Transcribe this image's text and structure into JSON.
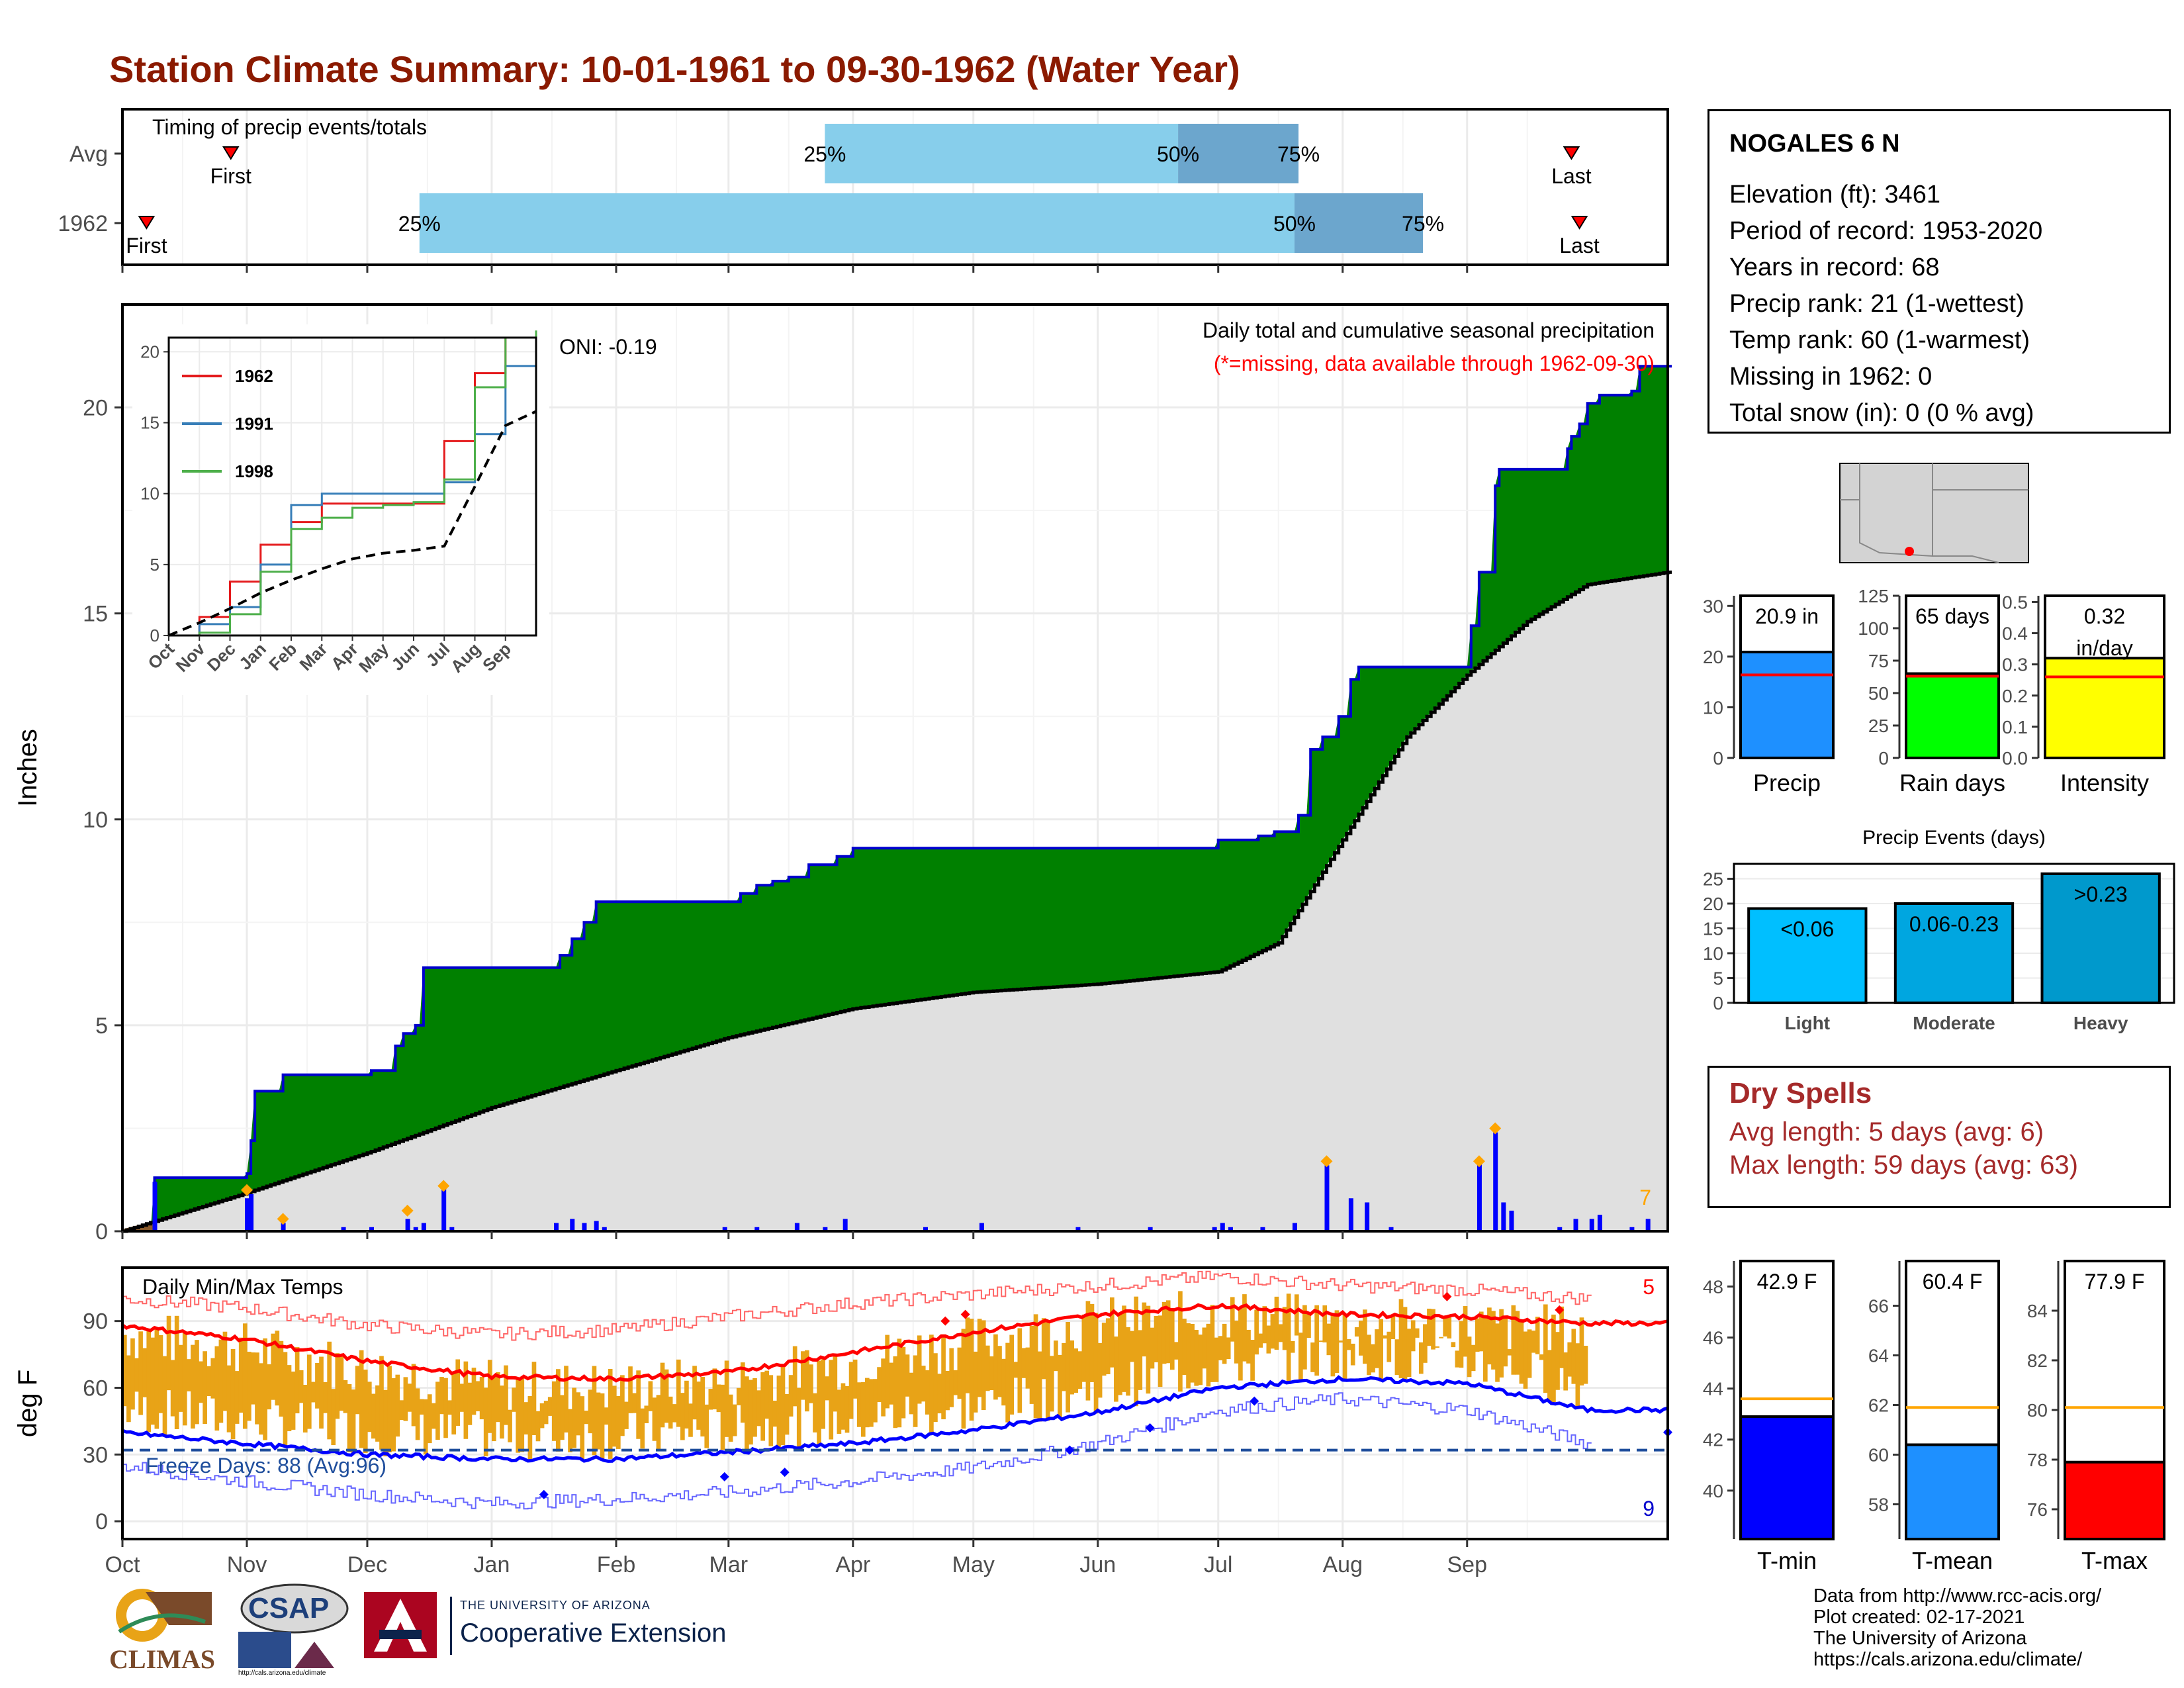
{
  "title": "Station Climate Summary: 10-01-1961 to 09-30-1962 (Water Year)",
  "station": {
    "name": "NOGALES 6 N",
    "rows": [
      "Elevation (ft): 3461",
      "Period of record: 1953-2020",
      "Years in record: 68",
      "Precip rank: 21 (1-wettest)",
      "Temp rank: 60 (1-warmest)",
      "Missing in 1962: 0",
      "Total snow (in): 0 (0 % avg)"
    ]
  },
  "dry_spells": {
    "title": "Dry Spells",
    "avg_length": "Avg length: 5 days (avg: 6)",
    "max_length": "Max length: 59 days (avg: 63)"
  },
  "footer": {
    "lines": [
      "Data from http://www.rcc-acis.org/",
      "Plot created: 02-17-2021",
      "The University of Arizona",
      "https://cals.arizona.edu/climate/"
    ]
  },
  "logos": {
    "climas": "CLIMAS",
    "csap": "CSAP",
    "csap_url": "http://cals.arizona.edu/climate",
    "ua_top": "THE UNIVERSITY OF ARIZONA",
    "ua_bottom": "Cooperative Extension"
  },
  "colors": {
    "title": "#8b1a00",
    "quartile_light": "#87ceeb",
    "quartile_dark": "#6ca6cd",
    "cumulative_fill": "#008000",
    "cumulative_line": "#0000cd",
    "normal_fill": "#e0e0e0",
    "daily_bar": "#0000ff",
    "temp_range": "#e8a317",
    "tmax_avg": "#ff0000",
    "tmin_avg": "#0000ff",
    "precip_bar": "#1e90ff",
    "rain_days_bar": "#00ff00",
    "intensity_bar": "#ffff00",
    "tmin_bar": "#0000ff",
    "tmean_bar": "#1e90ff",
    "tmax_bar": "#ff0000",
    "light_bar": "#00bfff",
    "moderate_bar": "#00a6e0",
    "heavy_bar": "#0099cc"
  },
  "chart_data": [
    {
      "id": "timing",
      "type": "bar",
      "title": "Timing of precip events/totals",
      "rows": [
        {
          "label": "Avg",
          "first": "Oct 28",
          "q25": "Mar 25",
          "q50": "Jun 21",
          "q75": "Jul 21",
          "last": "Sep 27",
          "first_label": "First",
          "last_label": "Last"
        },
        {
          "label": "1962",
          "first": "Oct 7",
          "q25": "Dec 14",
          "q50": "Jul 20",
          "q75": "Aug 21",
          "last": "Sep 29",
          "first_label": "First",
          "last_label": "Last"
        }
      ],
      "marker_labels": [
        "25%",
        "50%",
        "75%"
      ]
    },
    {
      "id": "cumulative-precip",
      "type": "area",
      "annotation_title": "Daily total and cumulative seasonal precipitation",
      "annotation_missing": "(*=missing, data available through 1962-09-30)",
      "oni": "ONI: -0.19",
      "ylabel": "Inches",
      "ylim": [
        0,
        22.5
      ],
      "yticks": [
        0,
        5,
        10,
        15,
        20
      ],
      "xticks": [
        "Oct",
        "Nov",
        "Dec",
        "Jan",
        "Feb",
        "Mar",
        "Apr",
        "May",
        "Jun",
        "Jul",
        "Aug",
        "Sep"
      ],
      "extreme_count": "7",
      "cumulative_1962": [
        [
          0,
          0
        ],
        [
          8,
          1.3
        ],
        [
          29,
          1.3
        ],
        [
          31,
          1.4
        ],
        [
          32,
          2.2
        ],
        [
          33,
          3.4
        ],
        [
          39,
          3.4
        ],
        [
          40,
          3.8
        ],
        [
          61,
          3.8
        ],
        [
          62,
          3.9
        ],
        [
          66,
          3.9
        ],
        [
          68,
          4.5
        ],
        [
          70,
          4.8
        ],
        [
          73,
          5.0
        ],
        [
          75,
          6.4
        ],
        [
          108,
          6.4
        ],
        [
          109,
          6.7
        ],
        [
          112,
          7.1
        ],
        [
          115,
          7.5
        ],
        [
          118,
          8.0
        ],
        [
          153,
          8.0
        ],
        [
          154,
          8.2
        ],
        [
          158,
          8.4
        ],
        [
          162,
          8.5
        ],
        [
          166,
          8.6
        ],
        [
          171,
          8.9
        ],
        [
          178,
          9.1
        ],
        [
          182,
          9.3
        ],
        [
          272,
          9.3
        ],
        [
          273,
          9.5
        ],
        [
          280,
          9.5
        ],
        [
          283,
          9.6
        ],
        [
          287,
          9.7
        ],
        [
          293,
          10.1
        ],
        [
          296,
          11.7
        ],
        [
          299,
          12.0
        ],
        [
          303,
          12.5
        ],
        [
          306,
          13.4
        ],
        [
          308,
          13.7
        ],
        [
          334,
          13.7
        ],
        [
          336,
          14.7
        ],
        [
          338,
          16.0
        ],
        [
          342,
          18.1
        ],
        [
          343,
          18.5
        ],
        [
          359,
          18.5
        ],
        [
          360,
          19.0
        ],
        [
          361,
          19.3
        ],
        [
          363,
          19.6
        ],
        [
          365,
          20.1
        ],
        [
          368,
          20.3
        ],
        [
          376,
          20.4
        ],
        [
          378,
          21.0
        ],
        [
          385,
          21.0
        ]
      ],
      "normal": [
        [
          0,
          0
        ],
        [
          30,
          0.9
        ],
        [
          61,
          1.9
        ],
        [
          92,
          3.0
        ],
        [
          123,
          3.9
        ],
        [
          151,
          4.7
        ],
        [
          182,
          5.4
        ],
        [
          212,
          5.8
        ],
        [
          243,
          6.0
        ],
        [
          273,
          6.3
        ],
        [
          288,
          7.0
        ],
        [
          304,
          9.5
        ],
        [
          320,
          12.0
        ],
        [
          335,
          13.5
        ],
        [
          350,
          14.8
        ],
        [
          365,
          15.7
        ],
        [
          385,
          16.0
        ]
      ],
      "daily": [
        [
          8,
          1.2
        ],
        [
          31,
          0.8
        ],
        [
          32,
          0.9
        ],
        [
          40,
          0.2
        ],
        [
          55,
          0.1
        ],
        [
          62,
          0.1
        ],
        [
          71,
          0.3
        ],
        [
          73,
          0.1
        ],
        [
          75,
          0.2
        ],
        [
          80,
          1.1
        ],
        [
          82,
          0.1
        ],
        [
          108,
          0.2
        ],
        [
          112,
          0.3
        ],
        [
          115,
          0.2
        ],
        [
          118,
          0.25
        ],
        [
          120,
          0.1
        ],
        [
          150,
          0.1
        ],
        [
          158,
          0.1
        ],
        [
          168,
          0.2
        ],
        [
          175,
          0.1
        ],
        [
          180,
          0.3
        ],
        [
          200,
          0.1
        ],
        [
          214,
          0.2
        ],
        [
          238,
          0.1
        ],
        [
          256,
          0.1
        ],
        [
          272,
          0.1
        ],
        [
          274,
          0.2
        ],
        [
          276,
          0.1
        ],
        [
          284,
          0.1
        ],
        [
          292,
          0.2
        ],
        [
          300,
          1.6
        ],
        [
          306,
          0.8
        ],
        [
          310,
          0.7
        ],
        [
          316,
          0.1
        ],
        [
          338,
          1.7
        ],
        [
          342,
          2.4
        ],
        [
          344,
          0.7
        ],
        [
          346,
          0.5
        ],
        [
          358,
          0.1
        ],
        [
          362,
          0.3
        ],
        [
          366,
          0.3
        ],
        [
          368,
          0.4
        ],
        [
          376,
          0.1
        ],
        [
          380,
          0.3
        ]
      ],
      "daily_markers": [
        [
          31,
          1.0
        ],
        [
          40,
          0.3
        ],
        [
          71,
          0.5
        ],
        [
          80,
          1.1
        ],
        [
          300,
          1.7
        ],
        [
          338,
          1.7
        ],
        [
          342,
          2.5
        ]
      ]
    },
    {
      "id": "inset",
      "type": "line",
      "ylim": [
        0,
        21
      ],
      "yticks": [
        0,
        5,
        10,
        15,
        20
      ],
      "xticks": [
        "Oct",
        "Nov",
        "Dec",
        "Jan",
        "Feb",
        "Mar",
        "Apr",
        "May",
        "Jun",
        "Jul",
        "Aug",
        "Sep"
      ],
      "series": [
        {
          "name": "1962",
          "color": "#e41a1c",
          "values": [
            0,
            1.3,
            3.8,
            6.4,
            8.0,
            9.3,
            9.3,
            9.3,
            9.3,
            13.7,
            18.5,
            21.0,
            21.0
          ]
        },
        {
          "name": "1991",
          "color": "#377eb8",
          "values": [
            0,
            0.8,
            2.0,
            5.0,
            9.2,
            10.0,
            10.0,
            10.0,
            10.0,
            10.8,
            14.2,
            19.0,
            19.5
          ]
        },
        {
          "name": "1998",
          "color": "#4daf4a",
          "values": [
            0,
            0.2,
            1.5,
            4.5,
            7.5,
            8.3,
            9.0,
            9.2,
            9.4,
            11.0,
            17.5,
            21.0,
            21.5
          ]
        },
        {
          "name": "",
          "color": "#000000",
          "dashed": true,
          "values": [
            0,
            0.9,
            1.9,
            3.0,
            3.9,
            4.7,
            5.4,
            5.8,
            6.0,
            6.3,
            10.5,
            14.8,
            15.8
          ]
        }
      ]
    },
    {
      "id": "temps",
      "type": "line",
      "title": "Daily Min/Max Temps",
      "ylabel": "deg F",
      "ylim": [
        -8,
        114
      ],
      "yticks": [
        0,
        30,
        60,
        90
      ],
      "freeze_label": "Freeze Days: 88 (Avg:96)",
      "freeze_line": 32,
      "count_high": "5",
      "count_low": "9",
      "tmax_avg": [
        [
          0,
          88
        ],
        [
          30,
          82
        ],
        [
          61,
          72
        ],
        [
          92,
          65
        ],
        [
          123,
          64
        ],
        [
          151,
          67
        ],
        [
          182,
          76
        ],
        [
          212,
          85
        ],
        [
          243,
          93
        ],
        [
          273,
          97
        ],
        [
          304,
          93
        ],
        [
          335,
          92
        ],
        [
          365,
          89
        ]
      ],
      "tmin_avg": [
        [
          0,
          40
        ],
        [
          30,
          35
        ],
        [
          61,
          30
        ],
        [
          92,
          28
        ],
        [
          123,
          28
        ],
        [
          151,
          31
        ],
        [
          182,
          35
        ],
        [
          212,
          41
        ],
        [
          243,
          49
        ],
        [
          273,
          60
        ],
        [
          304,
          64
        ],
        [
          335,
          62
        ],
        [
          365,
          50
        ]
      ],
      "tmax_record": [
        [
          0,
          100
        ],
        [
          30,
          96
        ],
        [
          61,
          88
        ],
        [
          92,
          84
        ],
        [
          123,
          86
        ],
        [
          151,
          92
        ],
        [
          182,
          98
        ],
        [
          212,
          102
        ],
        [
          243,
          106
        ],
        [
          273,
          110
        ],
        [
          304,
          106
        ],
        [
          335,
          104
        ],
        [
          365,
          100
        ]
      ],
      "tmin_record": [
        [
          0,
          25
        ],
        [
          30,
          18
        ],
        [
          61,
          12
        ],
        [
          92,
          8
        ],
        [
          123,
          10
        ],
        [
          151,
          13
        ],
        [
          182,
          18
        ],
        [
          212,
          24
        ],
        [
          243,
          35
        ],
        [
          273,
          50
        ],
        [
          304,
          55
        ],
        [
          335,
          50
        ],
        [
          365,
          35
        ]
      ]
    },
    {
      "id": "precip-total",
      "type": "bar",
      "categories": [
        "Precip"
      ],
      "values": [
        20.9
      ],
      "normal": 16.4,
      "value_label": "20.9 in",
      "ylim": [
        0,
        32
      ],
      "yticks": [
        0,
        10,
        20,
        30
      ]
    },
    {
      "id": "rain-days",
      "type": "bar",
      "categories": [
        "Rain days"
      ],
      "values": [
        65
      ],
      "normal": 63,
      "value_label": "65 days",
      "ylim": [
        0,
        125
      ],
      "yticks": [
        0,
        25,
        50,
        75,
        100,
        125
      ]
    },
    {
      "id": "intensity",
      "type": "bar",
      "categories": [
        "Intensity"
      ],
      "values": [
        0.32
      ],
      "normal": 0.26,
      "value_label_1": "0.32",
      "value_label_2": "in/day",
      "ylim": [
        0,
        0.52
      ],
      "yticks": [
        "0.0",
        "0.1",
        "0.2",
        "0.3",
        "0.4",
        "0.5"
      ]
    },
    {
      "id": "precip-events",
      "type": "bar",
      "title": "Precip Events (days)",
      "categories": [
        "Light",
        "Moderate",
        "Heavy"
      ],
      "values": [
        19,
        20,
        26
      ],
      "bar_labels": [
        "<0.06",
        "0.06-0.23",
        ">0.23"
      ],
      "ylim": [
        0,
        28
      ],
      "yticks": [
        0,
        5,
        10,
        15,
        20,
        25
      ]
    },
    {
      "id": "tmin",
      "type": "bar",
      "categories": [
        "T-min"
      ],
      "values": [
        42.9
      ],
      "normal": 43.6,
      "value_label": "42.9 F",
      "ylim": [
        38.1,
        49
      ],
      "yticks": [
        40,
        42,
        44,
        46,
        48
      ]
    },
    {
      "id": "tmean",
      "type": "bar",
      "categories": [
        "T-mean"
      ],
      "values": [
        60.4
      ],
      "normal": 61.9,
      "value_label": "60.4 F",
      "ylim": [
        56.6,
        67.8
      ],
      "yticks": [
        58,
        60,
        62,
        64,
        66
      ]
    },
    {
      "id": "tmax",
      "type": "bar",
      "categories": [
        "T-max"
      ],
      "values": [
        77.9
      ],
      "normal": 80.1,
      "value_label": "77.9 F",
      "ylim": [
        74.8,
        86
      ],
      "yticks": [
        76,
        78,
        80,
        82,
        84
      ]
    }
  ]
}
